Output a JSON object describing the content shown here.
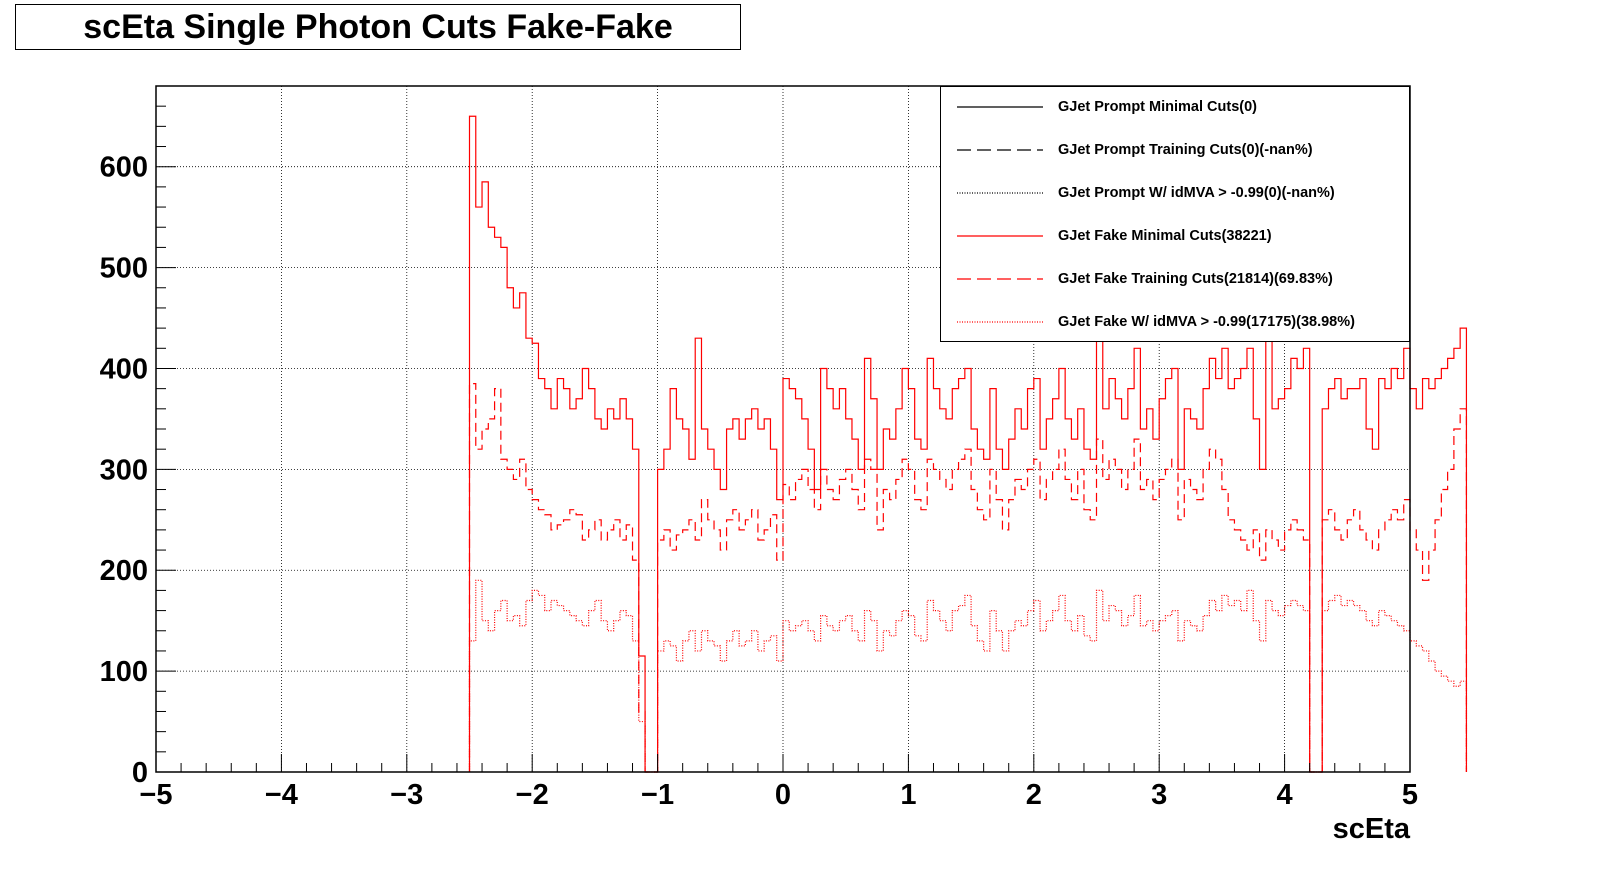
{
  "chart_data": {
    "type": "histogram",
    "title": "scEta Single Photon Cuts Fake-Fake",
    "xlabel": "scEta",
    "ylabel": "",
    "xlim": [
      -5,
      5
    ],
    "ylim": [
      0,
      680
    ],
    "grid": true,
    "legend_position": "top-right",
    "x_ticks": [
      -5,
      -4,
      -3,
      -2,
      -1,
      0,
      1,
      2,
      3,
      4,
      5
    ],
    "x_tick_labels": [
      "−5",
      "−4",
      "−3",
      "−2",
      "−1",
      "0",
      "1",
      "2",
      "3",
      "4",
      "5"
    ],
    "y_ticks": [
      0,
      100,
      200,
      300,
      400,
      500,
      600
    ],
    "y_tick_labels": [
      "0",
      "100",
      "200",
      "300",
      "400",
      "500",
      "600"
    ],
    "bin_width": 0.05,
    "x_bin_edges_start": -2.5,
    "series": [
      {
        "name": "GJet Prompt Minimal Cuts(0)",
        "color": "#000000",
        "style": "solid",
        "values": []
      },
      {
        "name": "GJet Prompt Training Cuts(0)(-nan%)",
        "color": "#000000",
        "style": "dashed",
        "values": []
      },
      {
        "name": "GJet Prompt W/ idMVA > -0.99(0)(-nan%)",
        "color": "#000000",
        "style": "dotted",
        "values": []
      },
      {
        "name": "GJet Fake Minimal Cuts(38221)",
        "color": "#ff0000",
        "style": "solid",
        "values": [
          650,
          560,
          585,
          540,
          530,
          520,
          480,
          460,
          475,
          430,
          425,
          390,
          380,
          360,
          390,
          380,
          360,
          370,
          400,
          380,
          350,
          340,
          360,
          350,
          370,
          350,
          320,
          115,
          0,
          0,
          300,
          320,
          380,
          350,
          340,
          310,
          430,
          340,
          320,
          300,
          280,
          340,
          350,
          330,
          350,
          360,
          340,
          350,
          320,
          270,
          390,
          380,
          370,
          350,
          320,
          280,
          400,
          380,
          360,
          380,
          350,
          330,
          300,
          410,
          370,
          300,
          340,
          330,
          360,
          400,
          380,
          330,
          320,
          410,
          380,
          360,
          350,
          380,
          390,
          400,
          340,
          320,
          310,
          380,
          320,
          300,
          330,
          360,
          340,
          380,
          390,
          320,
          350,
          370,
          400,
          350,
          330,
          360,
          320,
          310,
          430,
          360,
          390,
          370,
          350,
          380,
          420,
          340,
          360,
          330,
          370,
          390,
          400,
          300,
          360,
          350,
          340,
          380,
          410,
          390,
          420,
          380,
          390,
          400,
          420,
          350,
          300,
          430,
          360,
          370,
          380,
          410,
          400,
          420,
          0,
          0,
          360,
          380,
          390,
          370,
          380,
          380,
          390,
          340,
          320,
          390,
          380,
          400,
          390,
          420,
          380,
          360,
          390,
          380,
          390,
          400,
          410,
          420,
          440
        ]
      },
      {
        "name": "GJet Fake Training Cuts(21814)(69.83%)",
        "color": "#ff0000",
        "style": "dashed",
        "values": [
          385,
          320,
          340,
          350,
          380,
          310,
          300,
          290,
          310,
          280,
          270,
          260,
          255,
          240,
          245,
          250,
          260,
          255,
          230,
          240,
          250,
          230,
          240,
          250,
          230,
          245,
          210,
          60,
          0,
          0,
          230,
          240,
          220,
          235,
          240,
          250,
          230,
          270,
          250,
          240,
          220,
          250,
          260,
          240,
          250,
          260,
          230,
          240,
          255,
          210,
          285,
          270,
          290,
          300,
          280,
          260,
          300,
          280,
          270,
          290,
          300,
          280,
          260,
          310,
          300,
          240,
          280,
          270,
          290,
          310,
          300,
          270,
          260,
          310,
          300,
          290,
          280,
          300,
          310,
          320,
          280,
          260,
          250,
          300,
          270,
          240,
          270,
          290,
          280,
          300,
          310,
          270,
          290,
          300,
          320,
          290,
          270,
          300,
          260,
          250,
          330,
          290,
          310,
          300,
          280,
          300,
          330,
          280,
          290,
          270,
          290,
          300,
          310,
          250,
          290,
          280,
          270,
          300,
          320,
          310,
          280,
          250,
          240,
          230,
          220,
          240,
          210,
          240,
          230,
          220,
          240,
          250,
          240,
          230,
          0,
          0,
          250,
          260,
          240,
          230,
          250,
          260,
          240,
          230,
          220,
          240,
          250,
          260,
          250,
          270,
          240,
          220,
          190,
          220,
          250,
          280,
          300,
          340,
          360
        ]
      },
      {
        "name": "GJet Fake W/ idMVA > -0.99(17175)(38.98%)",
        "color": "#ff0000",
        "style": "dotted",
        "values": [
          130,
          190,
          150,
          140,
          160,
          170,
          150,
          155,
          145,
          170,
          180,
          175,
          160,
          170,
          165,
          160,
          155,
          150,
          145,
          160,
          170,
          150,
          140,
          150,
          160,
          155,
          130,
          50,
          0,
          0,
          120,
          130,
          125,
          110,
          130,
          140,
          120,
          140,
          130,
          125,
          110,
          130,
          140,
          125,
          130,
          140,
          120,
          130,
          135,
          110,
          150,
          140,
          145,
          150,
          140,
          130,
          155,
          145,
          140,
          150,
          155,
          140,
          130,
          160,
          150,
          120,
          140,
          135,
          150,
          160,
          155,
          135,
          130,
          170,
          160,
          150,
          140,
          160,
          165,
          175,
          145,
          130,
          120,
          160,
          140,
          120,
          140,
          150,
          145,
          160,
          170,
          140,
          150,
          160,
          175,
          150,
          140,
          155,
          135,
          130,
          180,
          150,
          165,
          160,
          145,
          155,
          175,
          145,
          150,
          140,
          150,
          155,
          160,
          130,
          150,
          145,
          140,
          155,
          170,
          160,
          175,
          165,
          170,
          160,
          180,
          150,
          130,
          170,
          160,
          155,
          165,
          170,
          165,
          160,
          0,
          0,
          160,
          170,
          175,
          165,
          170,
          165,
          160,
          150,
          145,
          160,
          155,
          150,
          145,
          140,
          130,
          125,
          120,
          110,
          100,
          95,
          90,
          85,
          90
        ]
      }
    ]
  }
}
